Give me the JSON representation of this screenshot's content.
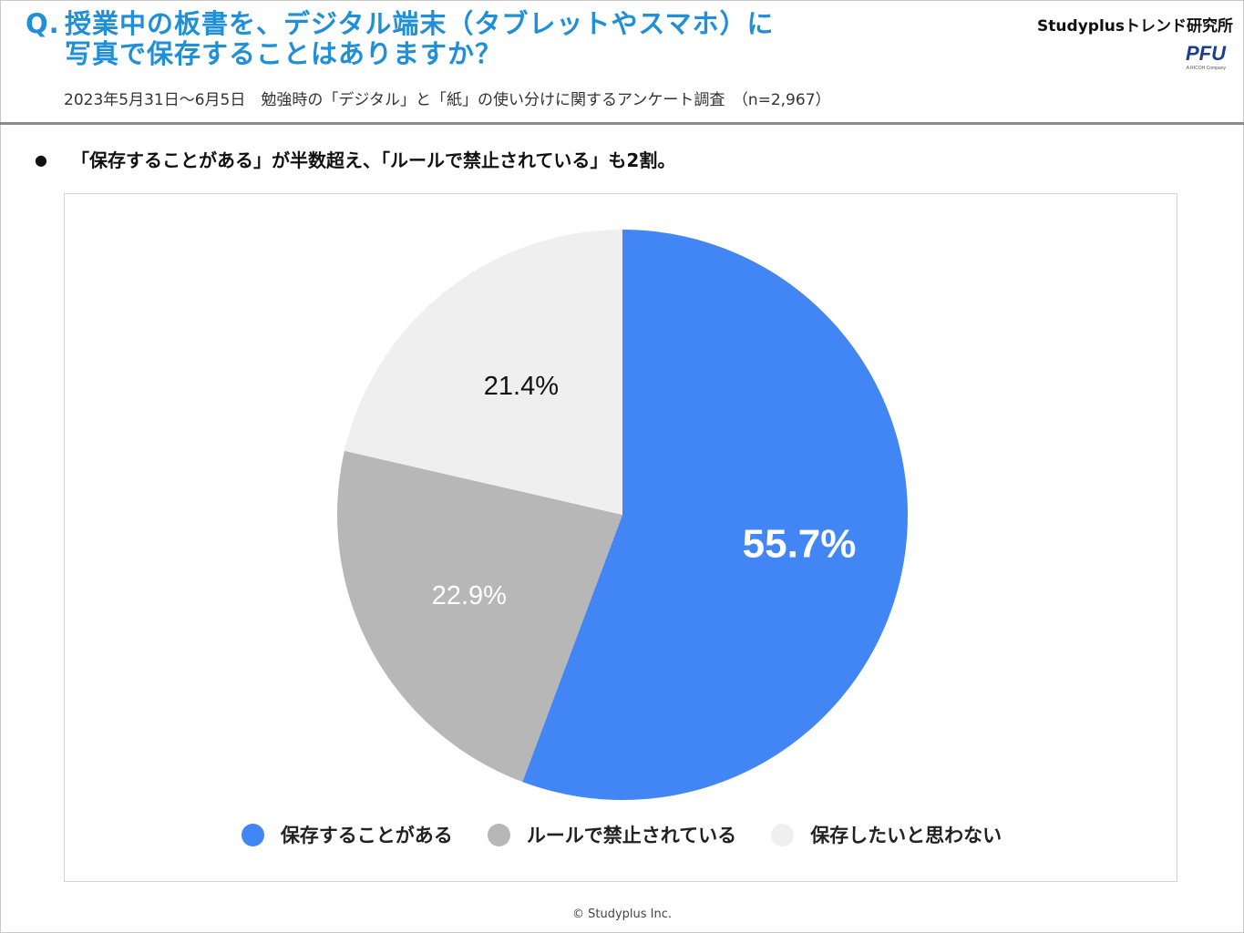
{
  "header": {
    "question_prefix": "Q.",
    "question_line1": "授業中の板書を、デジタル端末（タブレットやスマホ）に",
    "question_line2": "写真で保存することはありますか？",
    "survey_info": "2023年5月31日〜6月5日　勉強時の「デジタル」と「紙」の使い分けに関するアンケート調査　（n=2,967）",
    "brand_name": "Studyplusトレンド研究所",
    "logo_text": "PFU",
    "logo_subtext": "A RICOH Company"
  },
  "headline": {
    "bullet": "●",
    "text": "「保存することがある」が半数超え、「ルールで禁止されている」も2割。"
  },
  "chart_data": {
    "type": "pie",
    "categories": [
      "保存することがある",
      "ルールで禁止されている",
      "保存したいと思わない"
    ],
    "values": [
      55.7,
      22.9,
      21.4
    ],
    "data_labels": [
      "55.7%",
      "22.9%",
      "21.4%"
    ],
    "colors": [
      "#4285f4",
      "#b7b7b7",
      "#efefef"
    ],
    "label_colors": [
      "#ffffff",
      "#ffffff",
      "#111111"
    ],
    "start_angle": "12 o'clock",
    "direction": "clockwise",
    "legend_position": "bottom"
  },
  "footer": {
    "copyright": "© Studyplus Inc."
  }
}
